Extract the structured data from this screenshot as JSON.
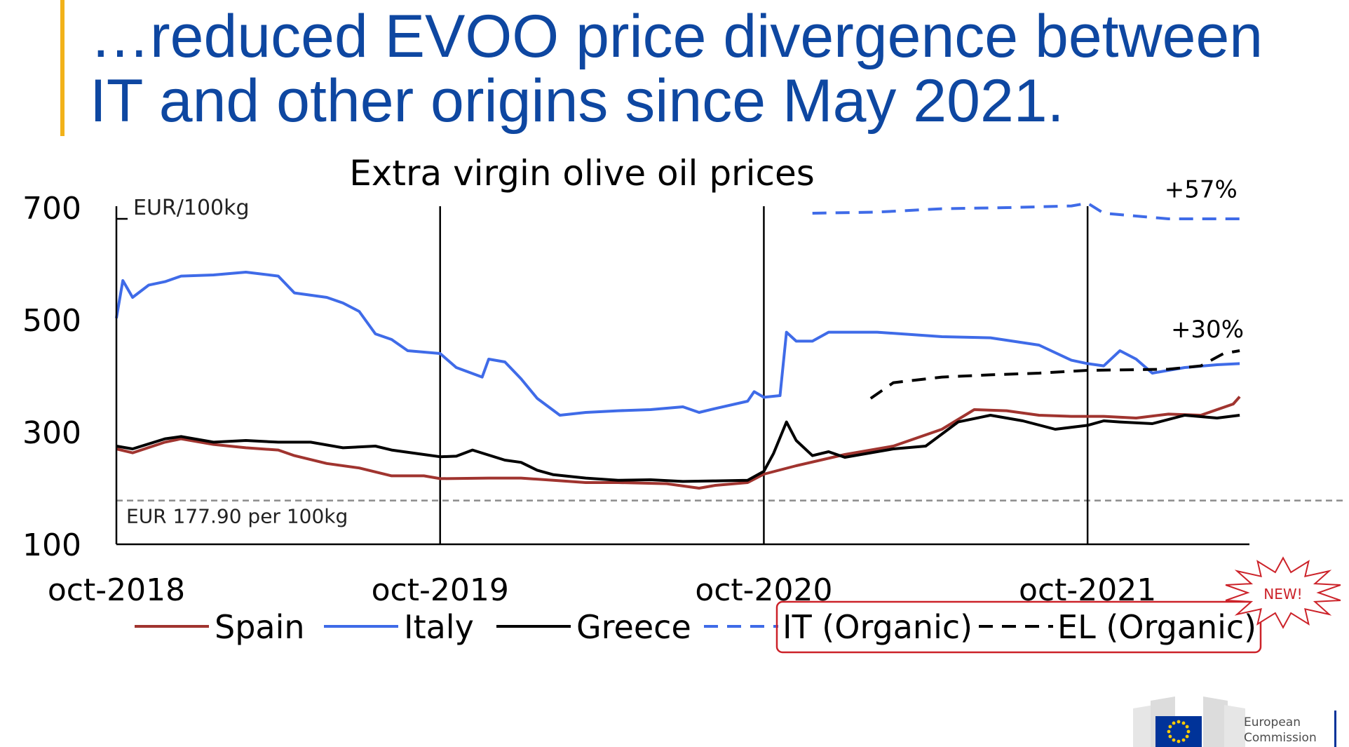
{
  "slide": {
    "title_line1": "…reduced EVOO price divergence between",
    "title_line2": "IT and other origins since May 2021."
  },
  "chart_data": {
    "type": "line",
    "title": "Extra virgin olive oil prices",
    "ylabel": "EUR/100kg",
    "ylim": [
      100,
      700
    ],
    "yticks": [
      100,
      300,
      500,
      700
    ],
    "xlim": [
      2018.75,
      2022.25
    ],
    "xticks": [
      {
        "x": 2018.75,
        "label": "oct-2018"
      },
      {
        "x": 2019.75,
        "label": "oct-2019"
      },
      {
        "x": 2020.75,
        "label": "oct-2020"
      },
      {
        "x": 2021.75,
        "label": "oct-2021"
      }
    ],
    "vlines": [
      2019.75,
      2020.75,
      2021.75
    ],
    "reference_line": {
      "y": 177.9,
      "label": "EUR 177.90 per 100kg",
      "color": "#8c8c8c"
    },
    "annotations": [
      {
        "text": "+57%",
        "x": 2022.1,
        "y": 718
      },
      {
        "text": "+30%",
        "x": 2022.12,
        "y": 469
      }
    ],
    "series": [
      {
        "name": "Spain",
        "color": "#a0342f",
        "style": "solid",
        "points": [
          [
            2018.75,
            270
          ],
          [
            2018.8,
            263
          ],
          [
            2018.9,
            282
          ],
          [
            2018.95,
            288
          ],
          [
            2019.05,
            278
          ],
          [
            2019.15,
            272
          ],
          [
            2019.25,
            268
          ],
          [
            2019.3,
            258
          ],
          [
            2019.4,
            244
          ],
          [
            2019.5,
            236
          ],
          [
            2019.6,
            222
          ],
          [
            2019.7,
            222
          ],
          [
            2019.75,
            217
          ],
          [
            2019.9,
            218
          ],
          [
            2020.0,
            218
          ],
          [
            2020.1,
            214
          ],
          [
            2020.2,
            210
          ],
          [
            2020.3,
            210
          ],
          [
            2020.45,
            208
          ],
          [
            2020.55,
            200
          ],
          [
            2020.6,
            205
          ],
          [
            2020.7,
            210
          ],
          [
            2020.75,
            225
          ],
          [
            2020.85,
            240
          ],
          [
            2021.0,
            260
          ],
          [
            2021.15,
            275
          ],
          [
            2021.3,
            305
          ],
          [
            2021.4,
            340
          ],
          [
            2021.5,
            338
          ],
          [
            2021.6,
            330
          ],
          [
            2021.7,
            328
          ],
          [
            2021.8,
            328
          ],
          [
            2021.9,
            325
          ],
          [
            2022.0,
            332
          ],
          [
            2022.1,
            330
          ],
          [
            2022.2,
            350
          ],
          [
            2022.22,
            363
          ]
        ]
      },
      {
        "name": "Italy",
        "color": "#3f6be8",
        "style": "solid",
        "points": [
          [
            2018.75,
            503
          ],
          [
            2018.77,
            570
          ],
          [
            2018.8,
            540
          ],
          [
            2018.85,
            562
          ],
          [
            2018.9,
            568
          ],
          [
            2018.95,
            578
          ],
          [
            2019.05,
            580
          ],
          [
            2019.15,
            585
          ],
          [
            2019.25,
            578
          ],
          [
            2019.3,
            548
          ],
          [
            2019.4,
            540
          ],
          [
            2019.45,
            530
          ],
          [
            2019.5,
            515
          ],
          [
            2019.55,
            475
          ],
          [
            2019.6,
            465
          ],
          [
            2019.65,
            445
          ],
          [
            2019.75,
            440
          ],
          [
            2019.8,
            415
          ],
          [
            2019.88,
            398
          ],
          [
            2019.9,
            430
          ],
          [
            2019.95,
            425
          ],
          [
            2020.0,
            395
          ],
          [
            2020.05,
            360
          ],
          [
            2020.12,
            330
          ],
          [
            2020.2,
            335
          ],
          [
            2020.3,
            338
          ],
          [
            2020.4,
            340
          ],
          [
            2020.5,
            345
          ],
          [
            2020.55,
            335
          ],
          [
            2020.6,
            342
          ],
          [
            2020.7,
            355
          ],
          [
            2020.72,
            372
          ],
          [
            2020.75,
            362
          ],
          [
            2020.8,
            365
          ],
          [
            2020.82,
            478
          ],
          [
            2020.85,
            462
          ],
          [
            2020.9,
            462
          ],
          [
            2020.95,
            478
          ],
          [
            2021.1,
            478
          ],
          [
            2021.3,
            470
          ],
          [
            2021.45,
            468
          ],
          [
            2021.6,
            455
          ],
          [
            2021.7,
            428
          ],
          [
            2021.75,
            422
          ],
          [
            2021.8,
            418
          ],
          [
            2021.85,
            445
          ],
          [
            2021.9,
            430
          ],
          [
            2021.95,
            405
          ],
          [
            2022.05,
            415
          ],
          [
            2022.15,
            420
          ],
          [
            2022.22,
            422
          ]
        ]
      },
      {
        "name": "Greece",
        "color": "#000000",
        "style": "solid",
        "points": [
          [
            2018.75,
            275
          ],
          [
            2018.8,
            270
          ],
          [
            2018.9,
            288
          ],
          [
            2018.95,
            292
          ],
          [
            2019.05,
            282
          ],
          [
            2019.15,
            285
          ],
          [
            2019.25,
            282
          ],
          [
            2019.35,
            282
          ],
          [
            2019.45,
            272
          ],
          [
            2019.55,
            275
          ],
          [
            2019.6,
            268
          ],
          [
            2019.7,
            260
          ],
          [
            2019.75,
            256
          ],
          [
            2019.8,
            257
          ],
          [
            2019.85,
            268
          ],
          [
            2019.95,
            250
          ],
          [
            2020.0,
            246
          ],
          [
            2020.05,
            232
          ],
          [
            2020.1,
            224
          ],
          [
            2020.2,
            218
          ],
          [
            2020.3,
            214
          ],
          [
            2020.4,
            215
          ],
          [
            2020.5,
            212
          ],
          [
            2020.6,
            213
          ],
          [
            2020.7,
            214
          ],
          [
            2020.75,
            230
          ],
          [
            2020.78,
            262
          ],
          [
            2020.82,
            318
          ],
          [
            2020.85,
            285
          ],
          [
            2020.9,
            258
          ],
          [
            2020.95,
            265
          ],
          [
            2021.0,
            255
          ],
          [
            2021.05,
            260
          ],
          [
            2021.1,
            265
          ],
          [
            2021.15,
            270
          ],
          [
            2021.25,
            275
          ],
          [
            2021.35,
            318
          ],
          [
            2021.45,
            330
          ],
          [
            2021.55,
            320
          ],
          [
            2021.65,
            305
          ],
          [
            2021.75,
            312
          ],
          [
            2021.8,
            320
          ],
          [
            2021.85,
            318
          ],
          [
            2021.95,
            315
          ],
          [
            2022.05,
            330
          ],
          [
            2022.15,
            325
          ],
          [
            2022.22,
            330
          ]
        ]
      },
      {
        "name": "IT (Organic)",
        "color": "#3f6be8",
        "style": "dashed",
        "points": [
          [
            2020.9,
            690
          ],
          [
            2021.1,
            692
          ],
          [
            2021.3,
            698
          ],
          [
            2021.5,
            700
          ],
          [
            2021.7,
            703
          ],
          [
            2021.75,
            708
          ],
          [
            2021.8,
            690
          ],
          [
            2022.0,
            680
          ],
          [
            2022.22,
            680
          ]
        ]
      },
      {
        "name": "EL (Organic)",
        "color": "#000000",
        "style": "dashed",
        "points": [
          [
            2021.08,
            360
          ],
          [
            2021.15,
            388
          ],
          [
            2021.3,
            398
          ],
          [
            2021.45,
            402
          ],
          [
            2021.6,
            405
          ],
          [
            2021.75,
            410
          ],
          [
            2022.0,
            412
          ],
          [
            2022.1,
            418
          ],
          [
            2022.17,
            440
          ],
          [
            2022.22,
            445
          ]
        ]
      }
    ],
    "legend": {
      "placement": "bottom",
      "badge": "NEW!"
    }
  },
  "logo": {
    "line1": "European",
    "line2": "Commission"
  },
  "colors": {
    "title": "#0e47a1",
    "accent": "#f2b21a",
    "highlight_box": "#cc2229",
    "eu_blue": "#003399",
    "eu_yellow": "#ffcc00"
  }
}
